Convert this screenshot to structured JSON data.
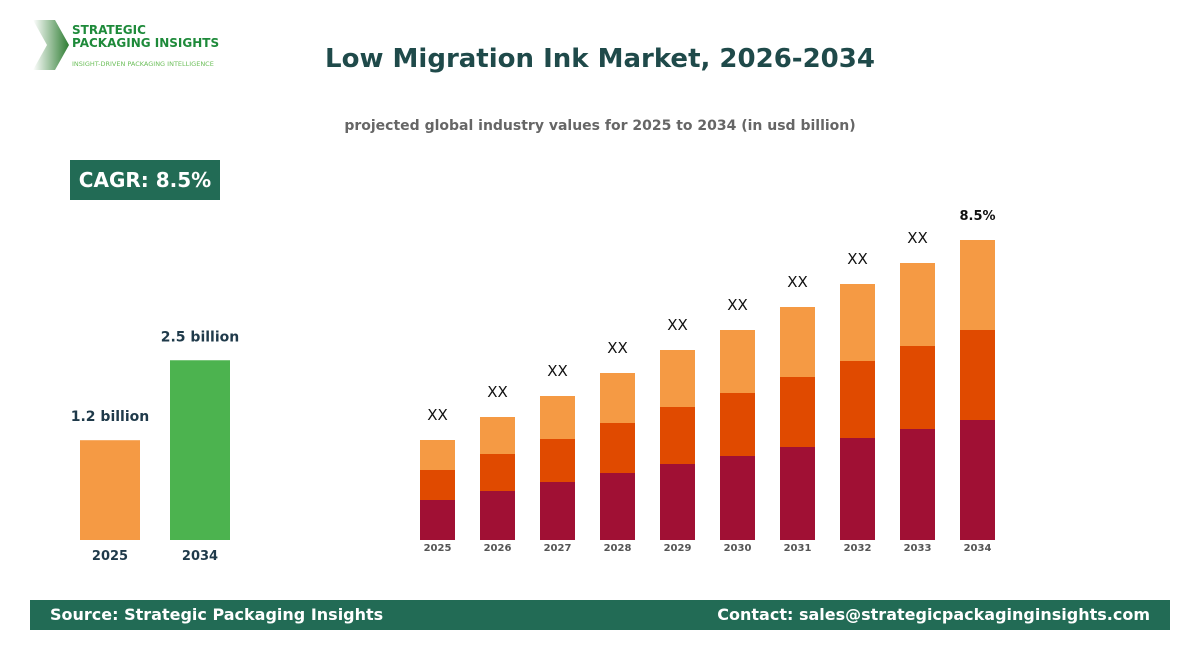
{
  "logo": {
    "line1": "STRATEGIC",
    "line2": "PACKAGING INSIGHTS",
    "tagline": "INSIGHT-DRIVEN PACKAGING INTELLIGENCE"
  },
  "title": "Low Migration Ink Market, 2026-2034",
  "subtitle": "projected global industry values for 2025 to 2034 (in usd billion)",
  "cagr_label": "CAGR: 8.5%",
  "footer": {
    "source": "Source: Strategic Packaging Insights",
    "contact": "Contact: sales@strategicpackaginginsights.com"
  },
  "colors": {
    "brand": "#226b55",
    "title": "#1f4a4a",
    "orange_light": "#f59a44",
    "orange_dark": "#e04a00",
    "crimson": "#a01034",
    "green": "#4cb34f"
  },
  "chart_data": [
    {
      "type": "bar",
      "categories": [
        "2025",
        "2034"
      ],
      "values": [
        1.2,
        2.5
      ],
      "data_labels": [
        "1.2 billion",
        "2.5 billion"
      ],
      "bar_colors": [
        "#f59a44",
        "#4cb34f"
      ],
      "grid": false
    },
    {
      "type": "bar",
      "stacked": true,
      "categories": [
        "2025",
        "2026",
        "2027",
        "2028",
        "2029",
        "2030",
        "2031",
        "2032",
        "2033",
        "2034"
      ],
      "series": [
        {
          "color": "#a01034",
          "values": [
            40,
            49,
            58,
            67,
            76,
            84,
            93,
            102,
            111,
            120
          ]
        },
        {
          "color": "#e04a00",
          "values": [
            30,
            37,
            43,
            50,
            57,
            63,
            70,
            77,
            83,
            90
          ]
        },
        {
          "color": "#f59a44",
          "values": [
            30,
            37,
            43,
            50,
            57,
            63,
            70,
            77,
            83,
            90
          ]
        }
      ],
      "data_labels": [
        "XX",
        "XX",
        "XX",
        "XX",
        "XX",
        "XX",
        "XX",
        "XX",
        "XX",
        "8.5%"
      ],
      "grid": false
    }
  ]
}
